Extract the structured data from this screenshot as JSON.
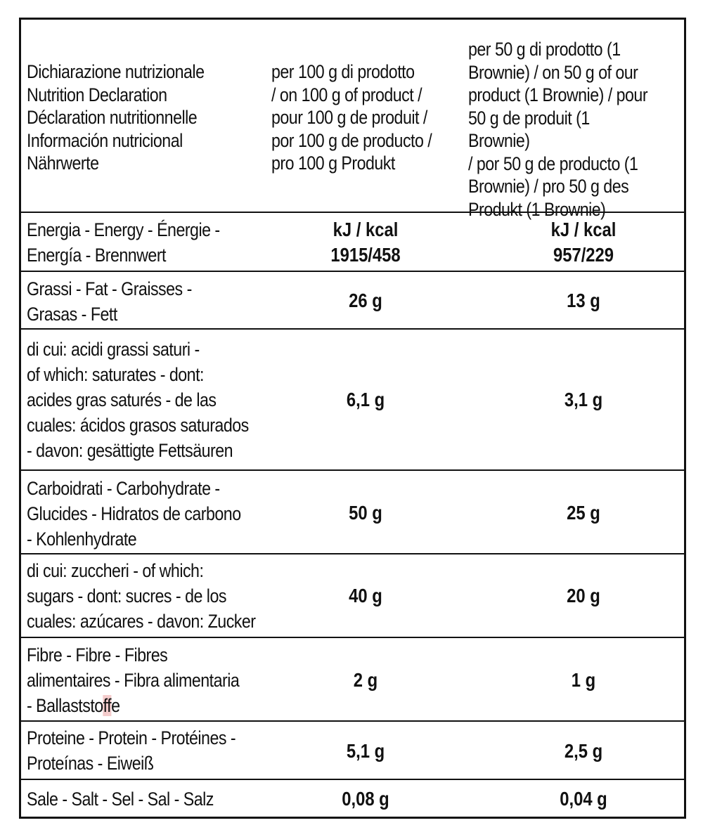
{
  "header": {
    "label": "Dichiarazione nutrizionale\nNutrition Declaration\nDéclaration nutritionnelle\nInformación nutricional\nNährwerte",
    "col1": "per 100 g di prodotto\n/ on 100 g of product /\npour 100 g de produit /\npor 100 g de producto /\npro 100 g Produkt",
    "col2": "per 50 g di prodotto (1\nBrownie) / on 50 g of our\nproduct (1 Brownie) / pour\n50 g de produit (1 Brownie)\n/ por 50 g de producto (1\nBrownie) / pro 50 g des\nProdukt (1 Brownie)"
  },
  "rows": [
    {
      "label": "Energia - Energy - Énergie -\nEnergía - Brennwert",
      "v1": "kJ / kcal\n1915/458",
      "v2": "kJ / kcal\n957/229"
    },
    {
      "label": "Grassi - Fat - Graisses -\nGrasas - Fett",
      "v1": "26 g",
      "v2": "13 g"
    },
    {
      "label": "di cui: acidi grassi saturi -\nof which: saturates - dont:\nacides gras saturés - de las\ncuales: ácidos grasos saturados\n- davon: gesättigte Fettsäuren",
      "v1": "6,1 g",
      "v2": "3,1 g"
    },
    {
      "label": "Carboidrati - Carbohydrate -\nGlucides - Hidratos de carbono\n- Kohlenhydrate",
      "v1": "50 g",
      "v2": "25 g"
    },
    {
      "label": "di cui: zuccheri - of which:\nsugars - dont: sucres - de los\ncuales: azúcares - davon: Zucker",
      "v1": "40 g",
      "v2": "20 g"
    },
    {
      "label_a": "Fibre - Fibre - Fibres\nalimentaires - Fibra alimentaria\n- Ballaststo",
      "label_b": "ff",
      "label_c": "e",
      "v1": "2 g",
      "v2": "1 g"
    },
    {
      "label": "Proteine - Protein - Protéines -\nProteínas - Eiweiß",
      "v1": "5,1 g",
      "v2": "2,5 g"
    },
    {
      "label": "Sale - Salt - Sel - Sal - Salz",
      "v1": "0,08 g",
      "v2": "0,04 g"
    }
  ]
}
